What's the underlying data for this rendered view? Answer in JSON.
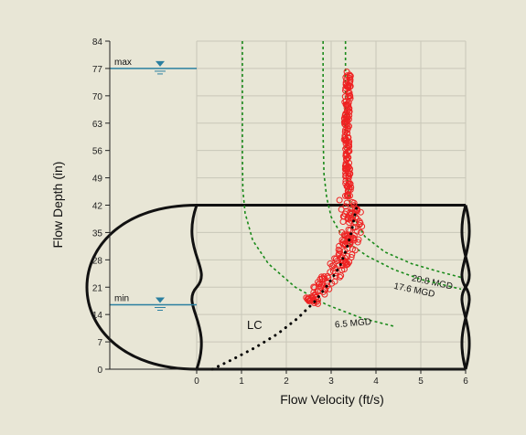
{
  "chart_data": {
    "type": "scatter",
    "xlabel": "Flow Velocity (ft/s)",
    "ylabel": "Flow Depth (in)",
    "xlim": [
      0,
      6
    ],
    "ylim": [
      0,
      84
    ],
    "xticks": [
      0,
      1,
      2,
      3,
      4,
      5,
      6
    ],
    "yticks": [
      0,
      7,
      14,
      21,
      28,
      35,
      42,
      49,
      56,
      63,
      70,
      77,
      84
    ],
    "grid": true,
    "water_levels": [
      {
        "label": "max",
        "depth": 77
      },
      {
        "label": "min",
        "depth": 16.5
      }
    ],
    "pipe_diameter_in": 42,
    "curves": [
      {
        "label": "20.8 MGD",
        "color": "#1a8a1a",
        "points": [
          [
            3.32,
            84
          ],
          [
            3.32,
            60
          ],
          [
            3.35,
            50
          ],
          [
            3.4,
            44
          ],
          [
            3.5,
            39
          ],
          [
            3.75,
            34
          ],
          [
            4.2,
            30
          ],
          [
            4.8,
            27
          ],
          [
            5.4,
            25
          ],
          [
            5.9,
            23.5
          ]
        ]
      },
      {
        "label": "17.6 MGD",
        "color": "#1a8a1a",
        "points": [
          [
            2.82,
            84
          ],
          [
            2.82,
            60
          ],
          [
            2.84,
            50
          ],
          [
            2.9,
            44
          ],
          [
            3.0,
            39
          ],
          [
            3.3,
            33
          ],
          [
            3.8,
            29
          ],
          [
            4.4,
            25.5
          ],
          [
            5.0,
            23
          ],
          [
            5.9,
            20.5
          ]
        ]
      },
      {
        "label": "6.5 MGD",
        "color": "#1a8a1a",
        "points": [
          [
            1.02,
            84
          ],
          [
            1.02,
            55
          ],
          [
            1.03,
            46
          ],
          [
            1.08,
            40
          ],
          [
            1.25,
            33
          ],
          [
            1.6,
            27
          ],
          [
            2.2,
            21
          ],
          [
            2.9,
            16.5
          ],
          [
            3.7,
            13
          ],
          [
            4.4,
            11
          ]
        ]
      }
    ],
    "lc_curve": {
      "label": "LC",
      "points": [
        [
          0.35,
          0
        ],
        [
          0.8,
          2.5
        ],
        [
          1.3,
          5.5
        ],
        [
          1.8,
          9
        ],
        [
          2.25,
          13
        ],
        [
          2.65,
          17.5
        ],
        [
          2.95,
          22
        ],
        [
          3.2,
          26.5
        ],
        [
          3.35,
          31
        ],
        [
          3.45,
          35
        ],
        [
          3.52,
          39
        ],
        [
          3.58,
          42
        ]
      ]
    },
    "scatter_band": [
      [
        2.5,
        17
      ],
      [
        2.7,
        19
      ],
      [
        2.9,
        22
      ],
      [
        3.1,
        25
      ],
      [
        3.25,
        28
      ],
      [
        3.35,
        31
      ],
      [
        3.45,
        34
      ],
      [
        3.5,
        37
      ],
      [
        3.45,
        40
      ],
      [
        3.4,
        44
      ],
      [
        3.38,
        48
      ],
      [
        3.36,
        52
      ],
      [
        3.37,
        56
      ],
      [
        3.34,
        60
      ],
      [
        3.35,
        64
      ],
      [
        3.36,
        68
      ],
      [
        3.38,
        72
      ],
      [
        3.38,
        76
      ]
    ],
    "scatter_color": "#ee2222"
  }
}
